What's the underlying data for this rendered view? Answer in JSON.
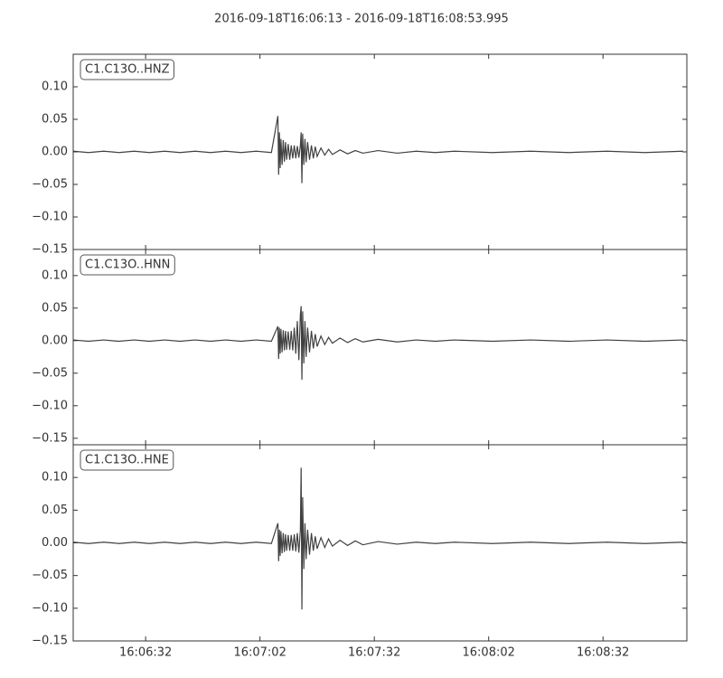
{
  "title": "2016-09-18T16:06:13  -  2016-09-18T16:08:53.995",
  "chart_data": [
    {
      "type": "line",
      "label": "C1.C13O..HNZ",
      "color": "#404040",
      "xlim": [
        0,
        160.995
      ],
      "ylim": [
        -0.15,
        0.15
      ],
      "yticks": [
        {
          "value": 0.1,
          "label": "0.10"
        },
        {
          "value": 0.05,
          "label": "0.05"
        },
        {
          "value": 0,
          "label": "0.00"
        },
        {
          "value": -0.05,
          "label": "−0.05"
        },
        {
          "value": -0.1,
          "label": "−0.10"
        },
        {
          "value": -0.15,
          "label": "−0.15"
        }
      ],
      "x": [
        0,
        4,
        8,
        12,
        16,
        20,
        24,
        28,
        32,
        36,
        40,
        44,
        48,
        52,
        53.7,
        53.9,
        54.1,
        54.3,
        54.5,
        54.8,
        55.1,
        55.4,
        55.7,
        56,
        56.4,
        56.8,
        57.2,
        57.6,
        58,
        58.4,
        58.8,
        59.2,
        59.6,
        59.8,
        60,
        60.2,
        60.5,
        60.8,
        61.1,
        61.5,
        62,
        62.5,
        63,
        63.5,
        64,
        65,
        66,
        67,
        68,
        70,
        72,
        74,
        76,
        80,
        85,
        90,
        95,
        100,
        110,
        120,
        130,
        140,
        150,
        160
      ],
      "values": [
        0.001,
        -0.001,
        0.001,
        -0.001,
        0.001,
        -0.001,
        0.001,
        -0.001,
        0.001,
        -0.001,
        0.001,
        -0.001,
        0.001,
        -0.001,
        0.055,
        -0.035,
        0.03,
        -0.025,
        0.02,
        -0.02,
        0.018,
        -0.015,
        0.015,
        -0.012,
        0.012,
        -0.012,
        0.01,
        -0.01,
        0.01,
        -0.01,
        0.009,
        -0.009,
        0.01,
        0.03,
        -0.048,
        0.028,
        -0.02,
        0.02,
        -0.016,
        0.015,
        -0.012,
        0.01,
        -0.01,
        0.008,
        -0.007,
        0.006,
        -0.005,
        0.004,
        -0.004,
        0.003,
        -0.003,
        0.002,
        -0.002,
        0.002,
        -0.002,
        0.001,
        -0.001,
        0.001,
        -0.001,
        0.001,
        -0.001,
        0.001,
        -0.001,
        0.001
      ]
    },
    {
      "type": "line",
      "label": "C1.C13O..HNN",
      "color": "#404040",
      "xlim": [
        0,
        160.995
      ],
      "ylim": [
        -0.16,
        0.14
      ],
      "yticks": [
        {
          "value": 0.1,
          "label": "0.10"
        },
        {
          "value": 0.05,
          "label": "0.05"
        },
        {
          "value": 0,
          "label": "0.00"
        },
        {
          "value": -0.05,
          "label": "−0.05"
        },
        {
          "value": -0.1,
          "label": "−0.10"
        },
        {
          "value": -0.15,
          "label": "−0.15"
        }
      ],
      "x": [
        0,
        4,
        8,
        12,
        16,
        20,
        24,
        28,
        32,
        36,
        40,
        44,
        48,
        52,
        53.7,
        53.9,
        54.1,
        54.3,
        54.5,
        54.8,
        55.1,
        55.4,
        55.7,
        56,
        56.4,
        56.8,
        57.2,
        57.6,
        58,
        58.4,
        58.8,
        59.2,
        59.6,
        59.8,
        60,
        60.2,
        60.5,
        60.8,
        61.1,
        61.5,
        62,
        62.5,
        63,
        63.5,
        64,
        65,
        66,
        67,
        68,
        70,
        72,
        74,
        76,
        80,
        85,
        90,
        95,
        100,
        110,
        120,
        130,
        140,
        150,
        160
      ],
      "values": [
        0.001,
        -0.001,
        0.001,
        -0.001,
        0.001,
        -0.001,
        0.001,
        -0.001,
        0.001,
        -0.001,
        0.001,
        -0.001,
        0.001,
        -0.001,
        0.022,
        -0.028,
        0.02,
        -0.02,
        0.018,
        -0.018,
        0.016,
        -0.015,
        0.015,
        -0.014,
        0.014,
        -0.014,
        0.015,
        -0.015,
        0.02,
        -0.02,
        0.03,
        -0.03,
        0.04,
        0.053,
        -0.06,
        0.045,
        -0.035,
        0.03,
        -0.025,
        0.02,
        -0.018,
        0.015,
        -0.012,
        0.01,
        -0.009,
        0.007,
        -0.006,
        0.005,
        -0.004,
        0.004,
        -0.003,
        0.003,
        -0.002,
        0.002,
        -0.002,
        0.001,
        -0.001,
        0.001,
        -0.001,
        0.001,
        -0.001,
        0.001,
        -0.001,
        0.001
      ]
    },
    {
      "type": "line",
      "label": "C1.C13O..HNE",
      "color": "#404040",
      "xlim": [
        0,
        160.995
      ],
      "ylim": [
        -0.15,
        0.15
      ],
      "yticks": [
        {
          "value": 0.1,
          "label": "0.10"
        },
        {
          "value": 0.05,
          "label": "0.05"
        },
        {
          "value": 0,
          "label": "0.00"
        },
        {
          "value": -0.05,
          "label": "−0.05"
        },
        {
          "value": -0.1,
          "label": "−0.10"
        },
        {
          "value": -0.15,
          "label": "−0.15"
        }
      ],
      "xticks": [
        {
          "value": 19,
          "label": "16:06:32"
        },
        {
          "value": 49,
          "label": "16:07:02"
        },
        {
          "value": 79,
          "label": "16:07:32"
        },
        {
          "value": 109,
          "label": "16:08:02"
        },
        {
          "value": 139,
          "label": "16:08:32"
        }
      ],
      "x": [
        0,
        4,
        8,
        12,
        16,
        20,
        24,
        28,
        32,
        36,
        40,
        44,
        48,
        52,
        53.7,
        53.9,
        54.1,
        54.3,
        54.5,
        54.8,
        55.1,
        55.4,
        55.7,
        56,
        56.4,
        56.8,
        57.2,
        57.6,
        58,
        58.4,
        58.8,
        59.2,
        59.6,
        59.8,
        60,
        60.2,
        60.5,
        60.8,
        61.1,
        61.5,
        62,
        62.5,
        63,
        63.5,
        64,
        65,
        66,
        67,
        68,
        70,
        72,
        74,
        76,
        80,
        85,
        90,
        95,
        100,
        110,
        120,
        130,
        140,
        150,
        160
      ],
      "values": [
        0.001,
        -0.001,
        0.001,
        -0.001,
        0.001,
        -0.001,
        0.001,
        -0.001,
        0.001,
        -0.001,
        0.001,
        -0.001,
        0.001,
        -0.001,
        0.03,
        -0.028,
        0.02,
        -0.02,
        0.018,
        -0.016,
        0.015,
        -0.014,
        0.013,
        -0.012,
        0.012,
        -0.012,
        0.012,
        -0.012,
        0.013,
        -0.013,
        0.015,
        -0.015,
        0.02,
        0.115,
        -0.102,
        0.07,
        -0.04,
        0.03,
        -0.025,
        0.02,
        -0.018,
        0.015,
        -0.012,
        0.01,
        -0.009,
        0.008,
        -0.007,
        0.006,
        -0.005,
        0.004,
        -0.004,
        0.003,
        -0.003,
        0.002,
        -0.002,
        0.001,
        -0.001,
        0.001,
        -0.001,
        0.001,
        -0.001,
        0.001,
        -0.001,
        0.001
      ]
    }
  ]
}
